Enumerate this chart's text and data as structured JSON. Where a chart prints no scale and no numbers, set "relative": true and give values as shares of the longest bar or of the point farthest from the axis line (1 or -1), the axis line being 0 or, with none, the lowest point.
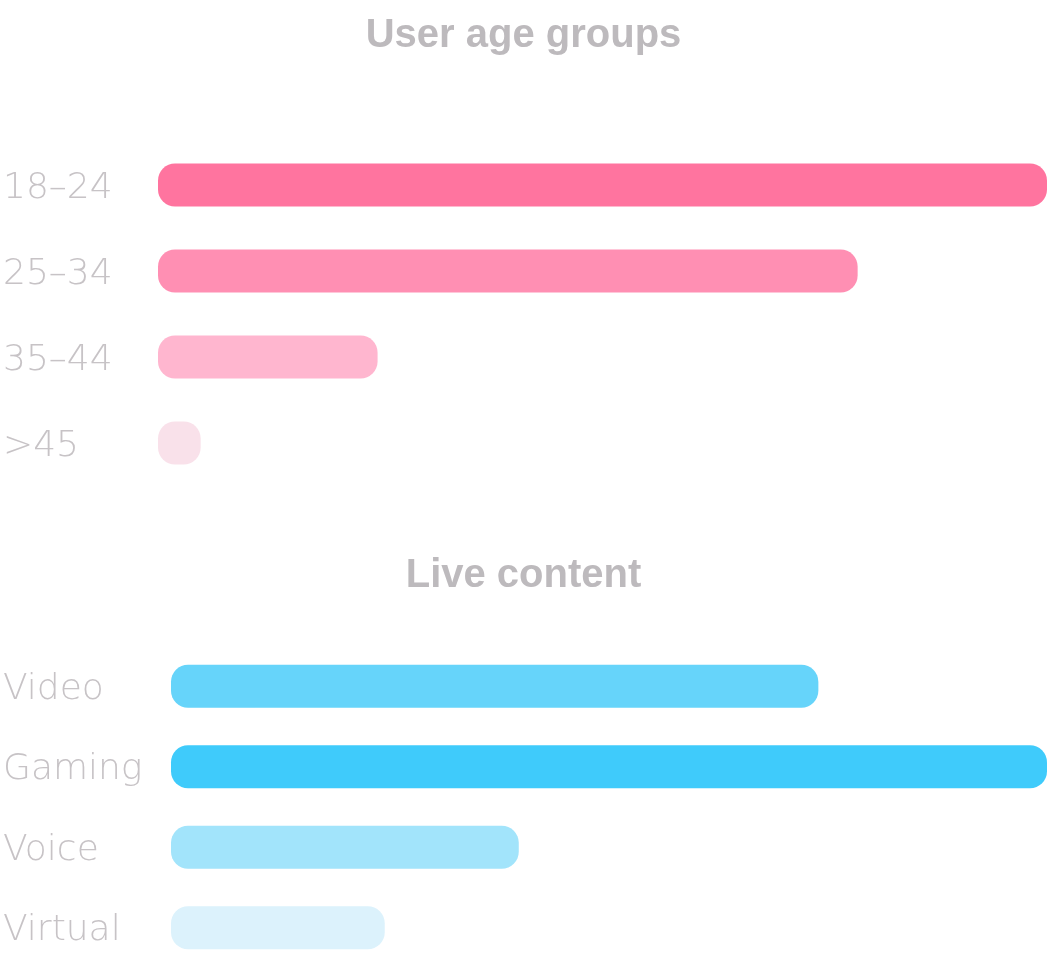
{
  "chart_data": [
    {
      "type": "bar",
      "title": "User age groups",
      "orientation": "horizontal",
      "relative": true,
      "categories": [
        "18–24",
        "25–34",
        "35–44",
        ">45"
      ],
      "values": [
        1,
        0.787,
        0.247,
        0.048
      ],
      "colors": [
        "#ff749f",
        "#ff8fb3",
        "#ffb6cf",
        "#f9e1ea"
      ]
    },
    {
      "type": "bar",
      "title": "Live content",
      "orientation": "horizontal",
      "relative": true,
      "categories": [
        "Video",
        "Gaming",
        "Voice",
        "Virtual"
      ],
      "values": [
        0.739,
        1,
        0.397,
        0.244
      ],
      "colors": [
        "#66d4fa",
        "#3fcbfb",
        "#a2e4fb",
        "#dcf2fc"
      ]
    }
  ]
}
